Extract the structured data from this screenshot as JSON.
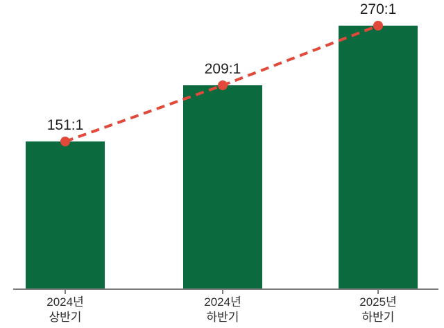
{
  "chart_data": {
    "type": "bar",
    "title": "",
    "xlabel": "",
    "ylabel": "",
    "categories": [
      "2024년 상반기",
      "2024년 하반기",
      "2025년 하반기"
    ],
    "values": [
      151,
      209,
      270
    ],
    "ylim": [
      0,
      285
    ],
    "grid": false,
    "legend_position": "none",
    "series": [
      {
        "name": "competition-ratio-bars",
        "type": "bar",
        "values": [
          151,
          209,
          270
        ]
      },
      {
        "name": "competition-ratio-trend",
        "type": "line-dashed",
        "values": [
          151,
          209,
          270
        ]
      }
    ],
    "points": [
      {
        "value": 151,
        "label": "151:1",
        "cat_line1": "2024년",
        "cat_line2": "상반기"
      },
      {
        "value": 209,
        "label": "209:1",
        "cat_line1": "2024년",
        "cat_line2": "하반기"
      },
      {
        "value": 270,
        "label": "270:1",
        "cat_line1": "2025년",
        "cat_line2": "하반기"
      }
    ],
    "colors": {
      "bar": "#0b6b3f",
      "line": "#e2493a",
      "marker": "#e2493a",
      "axis": "#7c7c7c",
      "value_text": "#1f1f1f",
      "category_text": "#2e2e2e",
      "background": "#ffffff"
    }
  }
}
